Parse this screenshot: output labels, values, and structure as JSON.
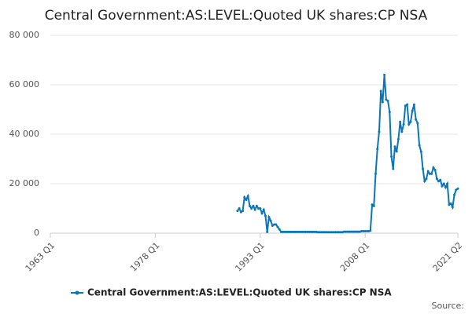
{
  "chart_data": {
    "type": "line",
    "title": "Central Government:AS:LEVEL:Quoted UK shares:CP NSA",
    "source": "Source:",
    "categories": [
      "1963 Q1",
      null,
      null,
      null,
      null,
      null,
      null,
      null,
      null,
      null,
      null,
      null,
      null,
      null,
      null,
      null,
      null,
      null,
      null,
      null,
      null,
      null,
      null,
      null,
      null,
      null,
      null,
      null,
      null,
      null,
      null,
      null,
      null,
      null,
      null,
      null,
      null,
      null,
      null,
      null,
      null,
      null,
      null,
      null,
      null,
      null,
      null,
      null,
      null,
      null,
      null,
      null,
      null,
      null,
      null,
      null,
      null,
      null,
      null,
      null,
      "1978 Q1",
      null,
      null,
      null,
      null,
      null,
      null,
      null,
      null,
      null,
      null,
      null,
      null,
      null,
      null,
      null,
      null,
      null,
      null,
      null,
      null,
      null,
      null,
      null,
      null,
      null,
      null,
      null,
      null,
      null,
      null,
      null,
      null,
      null,
      null,
      null,
      null,
      null,
      null,
      null,
      null,
      null,
      null,
      null,
      null,
      null,
      null,
      null,
      null,
      null,
      null,
      null,
      null,
      null,
      null,
      null,
      null,
      null,
      null,
      null,
      "1993 Q1",
      null,
      null,
      null,
      null,
      null,
      null,
      null,
      null,
      null,
      null,
      null,
      null,
      null,
      null,
      null,
      null,
      null,
      null,
      null,
      null,
      null,
      null,
      null,
      null,
      null,
      null,
      null,
      null,
      null,
      null,
      null,
      null,
      null,
      null,
      null,
      null,
      null,
      null,
      null,
      null,
      null,
      null,
      null,
      null,
      null,
      null,
      null,
      null,
      null,
      null,
      null,
      null,
      null,
      null,
      null,
      null,
      null,
      null,
      null,
      "2008 Q1",
      null,
      null,
      null,
      null,
      null,
      null,
      null,
      null,
      null,
      null,
      null,
      null,
      null,
      null,
      null,
      null,
      null,
      null,
      null,
      null,
      null,
      null,
      null,
      null,
      null,
      null,
      null,
      null,
      null,
      null,
      null,
      null,
      null,
      null,
      null,
      null,
      null,
      null,
      null,
      null,
      null,
      null,
      null,
      null,
      null,
      null,
      null,
      null,
      null,
      null,
      null,
      null,
      "2021 Q2"
    ],
    "series": [
      {
        "name": "Central Government:AS:LEVEL:Quoted UK shares:CP NSA",
        "color": "#0b76b7",
        "values": [
          null,
          null,
          null,
          null,
          null,
          null,
          null,
          null,
          null,
          null,
          null,
          null,
          null,
          null,
          null,
          null,
          null,
          null,
          null,
          null,
          null,
          null,
          null,
          null,
          null,
          null,
          null,
          null,
          null,
          null,
          null,
          null,
          null,
          null,
          null,
          null,
          null,
          null,
          null,
          null,
          null,
          null,
          null,
          null,
          null,
          null,
          null,
          null,
          null,
          null,
          null,
          null,
          null,
          null,
          null,
          null,
          null,
          null,
          null,
          null,
          null,
          null,
          null,
          null,
          null,
          null,
          null,
          null,
          null,
          null,
          null,
          null,
          null,
          null,
          null,
          null,
          null,
          null,
          null,
          null,
          null,
          null,
          null,
          null,
          null,
          null,
          null,
          null,
          null,
          null,
          null,
          null,
          null,
          null,
          null,
          null,
          null,
          null,
          null,
          null,
          null,
          null,
          null,
          null,
          null,
          null,
          null,
          9000,
          10000,
          8500,
          9000,
          14500,
          13500,
          15000,
          11000,
          10000,
          11000,
          9500,
          11000,
          10000,
          10000,
          8000,
          9500,
          7000,
          500,
          6500,
          5000,
          3000,
          3500,
          3500,
          2500,
          1500,
          500,
          500,
          500,
          500,
          500,
          500,
          500,
          500,
          500,
          500,
          500,
          500,
          500,
          500,
          500,
          500,
          500,
          500,
          500,
          500,
          500,
          400,
          400,
          400,
          400,
          400,
          400,
          400,
          400,
          400,
          400,
          400,
          400,
          400,
          400,
          400,
          600,
          600,
          600,
          600,
          600,
          600,
          600,
          600,
          600,
          600,
          800,
          800,
          800,
          800,
          800,
          1000,
          11500,
          11000,
          24000,
          34000,
          41000,
          57500,
          53000,
          64000,
          54000,
          53500,
          49000,
          31000,
          26000,
          35000,
          33000,
          38000,
          45000,
          41000,
          44000,
          51500,
          52000,
          44000,
          45000,
          49500,
          52000,
          46000,
          44500,
          35500,
          33000,
          26000,
          21000,
          22000,
          25000,
          24000,
          24000,
          26500,
          25500,
          22000,
          21000,
          21500,
          19000,
          20000,
          18500,
          20000,
          11500,
          12000,
          10500,
          15500,
          17500,
          18000
        ]
      }
    ],
    "ylim": [
      0,
      80000
    ],
    "yticks": [
      0,
      {
        "value": 20000,
        "label": "20 000"
      },
      {
        "value": 40000,
        "label": "40 000"
      },
      {
        "value": 60000,
        "label": "60 000"
      },
      {
        "value": 80000,
        "label": "80 000"
      }
    ],
    "grid": true
  }
}
